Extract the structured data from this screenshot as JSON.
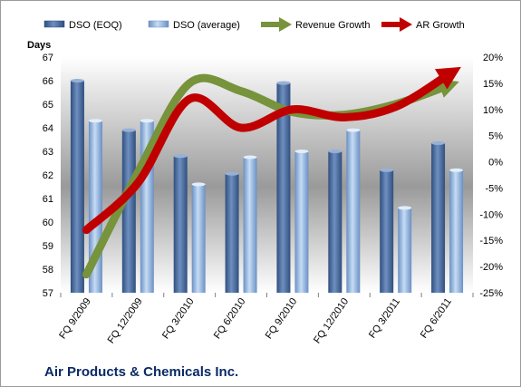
{
  "chart_data": {
    "type": "bar",
    "title": "Air Products & Chemicals Inc.",
    "ylabel": "Days",
    "categories": [
      "FQ 9/2009",
      "FQ 12/2009",
      "FQ 3/2010",
      "FQ 6/2010",
      "FQ 9/2010",
      "FQ 12/2010",
      "FQ 3/2011",
      "FQ 6/2011"
    ],
    "ylim": [
      57,
      67
    ],
    "y_ticks": [
      57,
      58,
      59,
      60,
      61,
      62,
      63,
      64,
      65,
      66,
      67
    ],
    "y2lim": [
      -25,
      20
    ],
    "y2_ticks": [
      "20%",
      "15%",
      "10%",
      "5%",
      "0%",
      "-5%",
      "-10%",
      "-15%",
      "-20%",
      "-25%"
    ],
    "y2_tick_values": [
      20,
      15,
      10,
      5,
      0,
      -5,
      -10,
      -15,
      -20,
      -25
    ],
    "legend_position": "top",
    "grid": false,
    "series": [
      {
        "name": "DSO (EOQ)",
        "kind": "bar",
        "axis": "left",
        "color": "#4a6a9c",
        "values": [
          66.0,
          63.9,
          62.8,
          62.05,
          65.9,
          63.0,
          62.2,
          63.35
        ]
      },
      {
        "name": "DSO (average)",
        "kind": "bar",
        "axis": "left",
        "color": "#8fb2dc",
        "values": [
          64.3,
          64.3,
          61.6,
          62.75,
          63.0,
          63.9,
          60.6,
          62.2
        ]
      },
      {
        "name": "Revenue Growth",
        "kind": "line",
        "axis": "right",
        "color": "#77933c",
        "values": [
          -21.5,
          -2.0,
          15.0,
          13.5,
          9.5,
          9.0,
          11.0,
          14.5
        ]
      },
      {
        "name": "AR Growth",
        "kind": "line",
        "axis": "right",
        "color": "#c00000",
        "values": [
          -13.0,
          -4.0,
          12.0,
          6.5,
          10.0,
          8.5,
          10.5,
          16.5
        ]
      }
    ]
  }
}
